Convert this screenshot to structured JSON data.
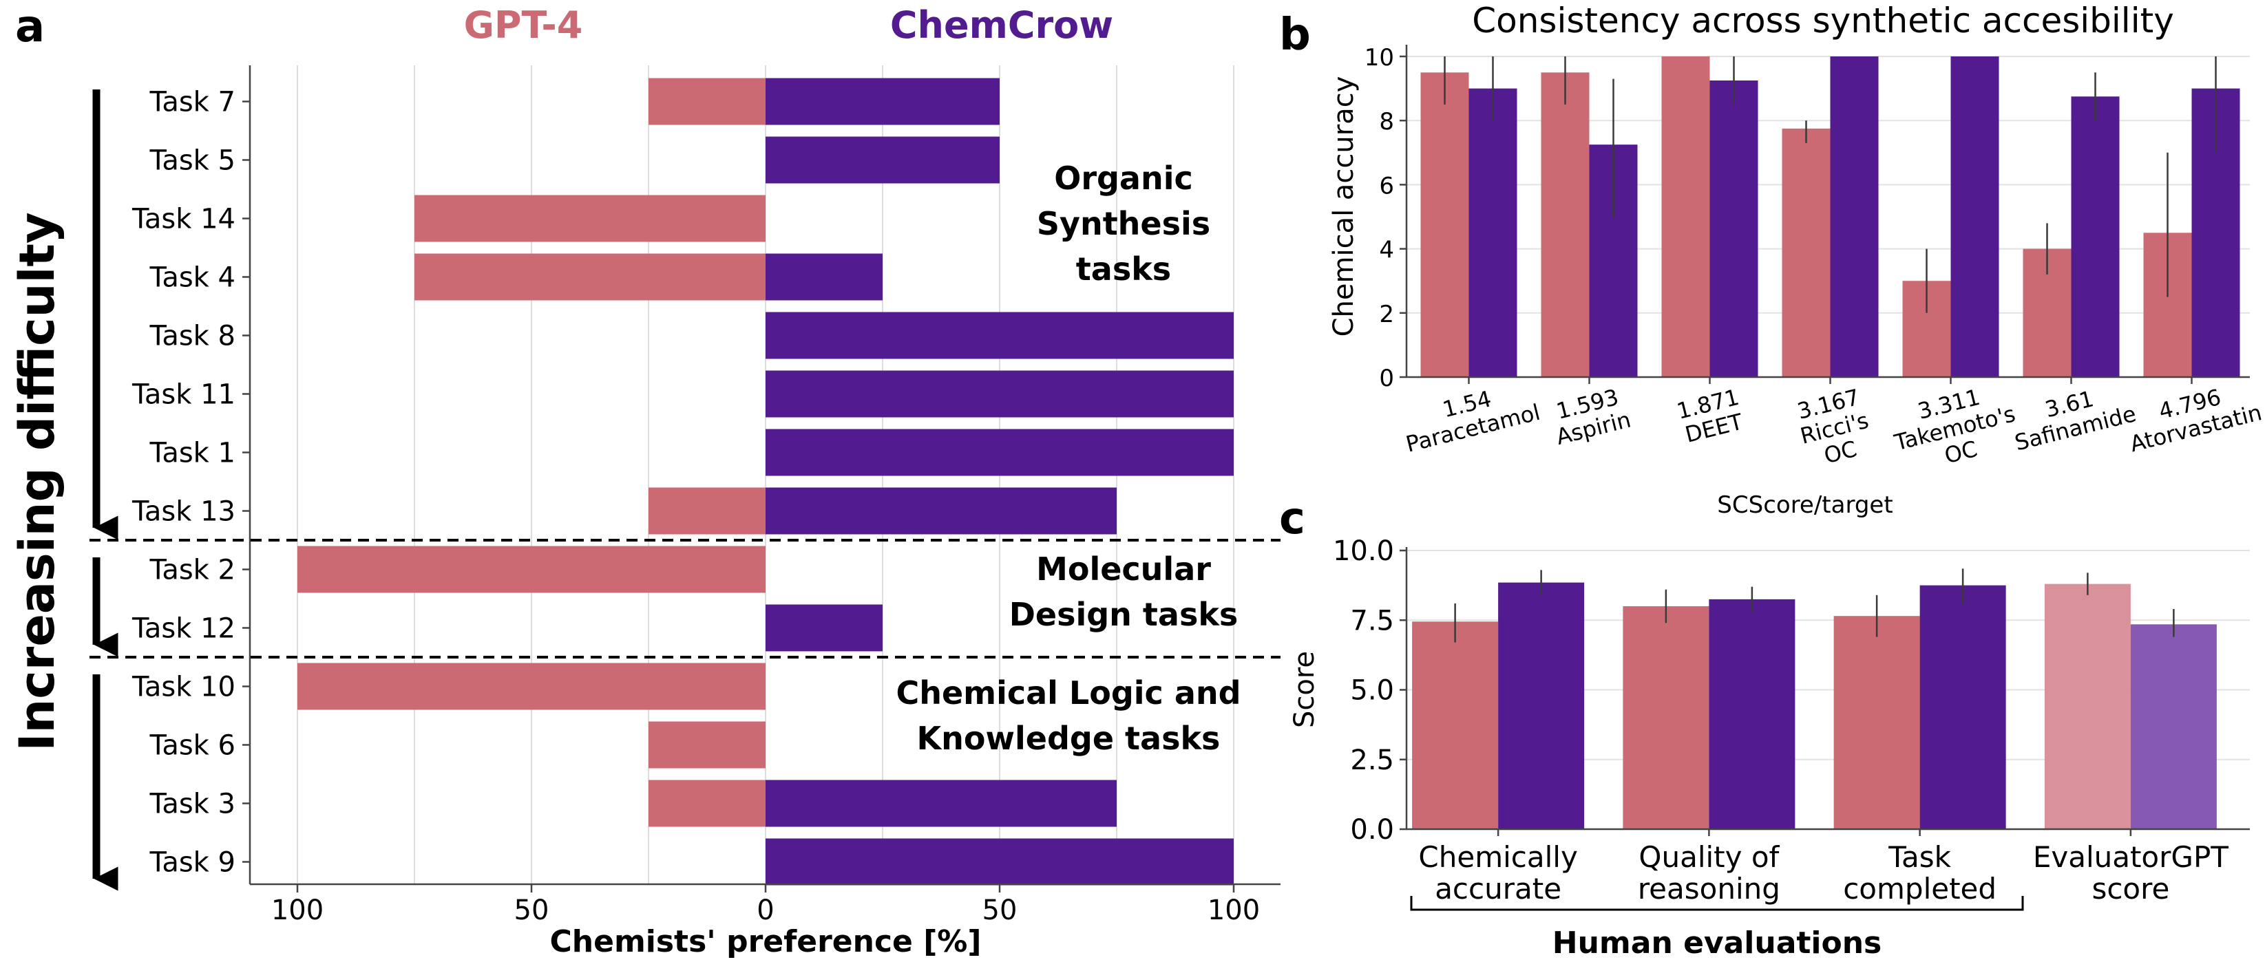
{
  "colors": {
    "gpt4": "#CC6A74",
    "chemcrow": "#521B8F",
    "gpt4_light": "#D9919A",
    "chemcrow_light": "#8659B4"
  },
  "panel_labels": {
    "a": "a",
    "b": "b",
    "c": "c"
  },
  "chart_data": [
    {
      "type": "bar",
      "orientation": "horizontal-diverging",
      "legend": {
        "left": "GPT-4",
        "right": "ChemCrow"
      },
      "categories": [
        "Task 7",
        "Task 5",
        "Task 14",
        "Task 4",
        "Task 8",
        "Task 11",
        "Task 1",
        "Task 13",
        "Task 2",
        "Task 12",
        "Task 10",
        "Task 6",
        "Task 3",
        "Task 9"
      ],
      "series": [
        {
          "name": "GPT-4",
          "values": [
            25,
            0,
            75,
            75,
            0,
            0,
            0,
            25,
            100,
            0,
            100,
            25,
            25,
            0
          ]
        },
        {
          "name": "ChemCrow",
          "values": [
            50,
            50,
            0,
            25,
            100,
            100,
            100,
            75,
            0,
            25,
            0,
            0,
            75,
            100
          ]
        }
      ],
      "xlabel": "Chemists' preference [%]",
      "xticks": [
        "100",
        "50",
        "0",
        "50",
        "100"
      ],
      "xlim": [
        -100,
        100
      ],
      "ylabel": "Increasing difficulty",
      "groups": [
        {
          "label_lines": [
            "Organic",
            "Synthesis",
            "tasks"
          ],
          "task_count": 8
        },
        {
          "label_lines": [
            "Molecular",
            "Design tasks"
          ],
          "task_count": 2
        },
        {
          "label_lines": [
            "Chemical Logic and",
            "Knowledge tasks"
          ],
          "task_count": 4
        }
      ],
      "grid": "vertical"
    },
    {
      "type": "bar",
      "title": "Consistency across synthetic accesibility",
      "ylabel": "Chemical accuracy",
      "xlabel": "SCScore/target",
      "ylim": [
        0,
        10
      ],
      "yticks": [
        "0",
        "2",
        "4",
        "6",
        "8",
        "10"
      ],
      "categories": [
        [
          "1.54",
          "Paracetamol"
        ],
        [
          "1.593",
          "Aspirin"
        ],
        [
          "1.871",
          "DEET"
        ],
        [
          "3.167",
          "Ricci's",
          "OC"
        ],
        [
          "3.311",
          "Takemoto's",
          "OC"
        ],
        [
          "3.61",
          "Safinamide"
        ],
        [
          "4.796",
          "Atorvastatin"
        ]
      ],
      "series": [
        {
          "name": "GPT-4",
          "values": [
            9.5,
            9.5,
            10,
            7.75,
            3,
            4,
            4.5
          ],
          "err_low": [
            8.5,
            8.5,
            10,
            7.3,
            2,
            3.2,
            2.5
          ],
          "err_high": [
            10,
            10,
            10,
            8.0,
            4,
            4.8,
            7
          ]
        },
        {
          "name": "ChemCrow",
          "values": [
            9,
            7.25,
            9.25,
            10,
            10,
            8.75,
            9
          ],
          "err_low": [
            8,
            5,
            8.5,
            10,
            10,
            8,
            7
          ],
          "err_high": [
            10,
            9.3,
            10,
            10,
            10,
            9.5,
            10
          ]
        }
      ],
      "grid": "horizontal"
    },
    {
      "type": "bar",
      "ylabel": "Score",
      "ylim": [
        0,
        10
      ],
      "yticks": [
        "0.0",
        "2.5",
        "5.0",
        "7.5",
        "10.0"
      ],
      "categories": [
        [
          "Chemically",
          "accurate"
        ],
        [
          "Quality of",
          "reasoning"
        ],
        [
          "Task",
          "completed"
        ],
        [
          "EvaluatorGPT",
          "score"
        ]
      ],
      "series": [
        {
          "name": "GPT-4",
          "values": [
            7.45,
            8.0,
            7.65,
            8.8
          ],
          "err_low": [
            6.7,
            7.4,
            6.9,
            8.4
          ],
          "err_high": [
            8.1,
            8.6,
            8.4,
            9.2
          ]
        },
        {
          "name": "ChemCrow",
          "values": [
            8.85,
            8.25,
            8.75,
            7.35
          ],
          "err_low": [
            8.4,
            7.8,
            8.1,
            6.9
          ],
          "err_high": [
            9.3,
            8.7,
            9.35,
            7.9
          ]
        }
      ],
      "group_label": "Human evaluations",
      "grid": "horizontal"
    }
  ]
}
